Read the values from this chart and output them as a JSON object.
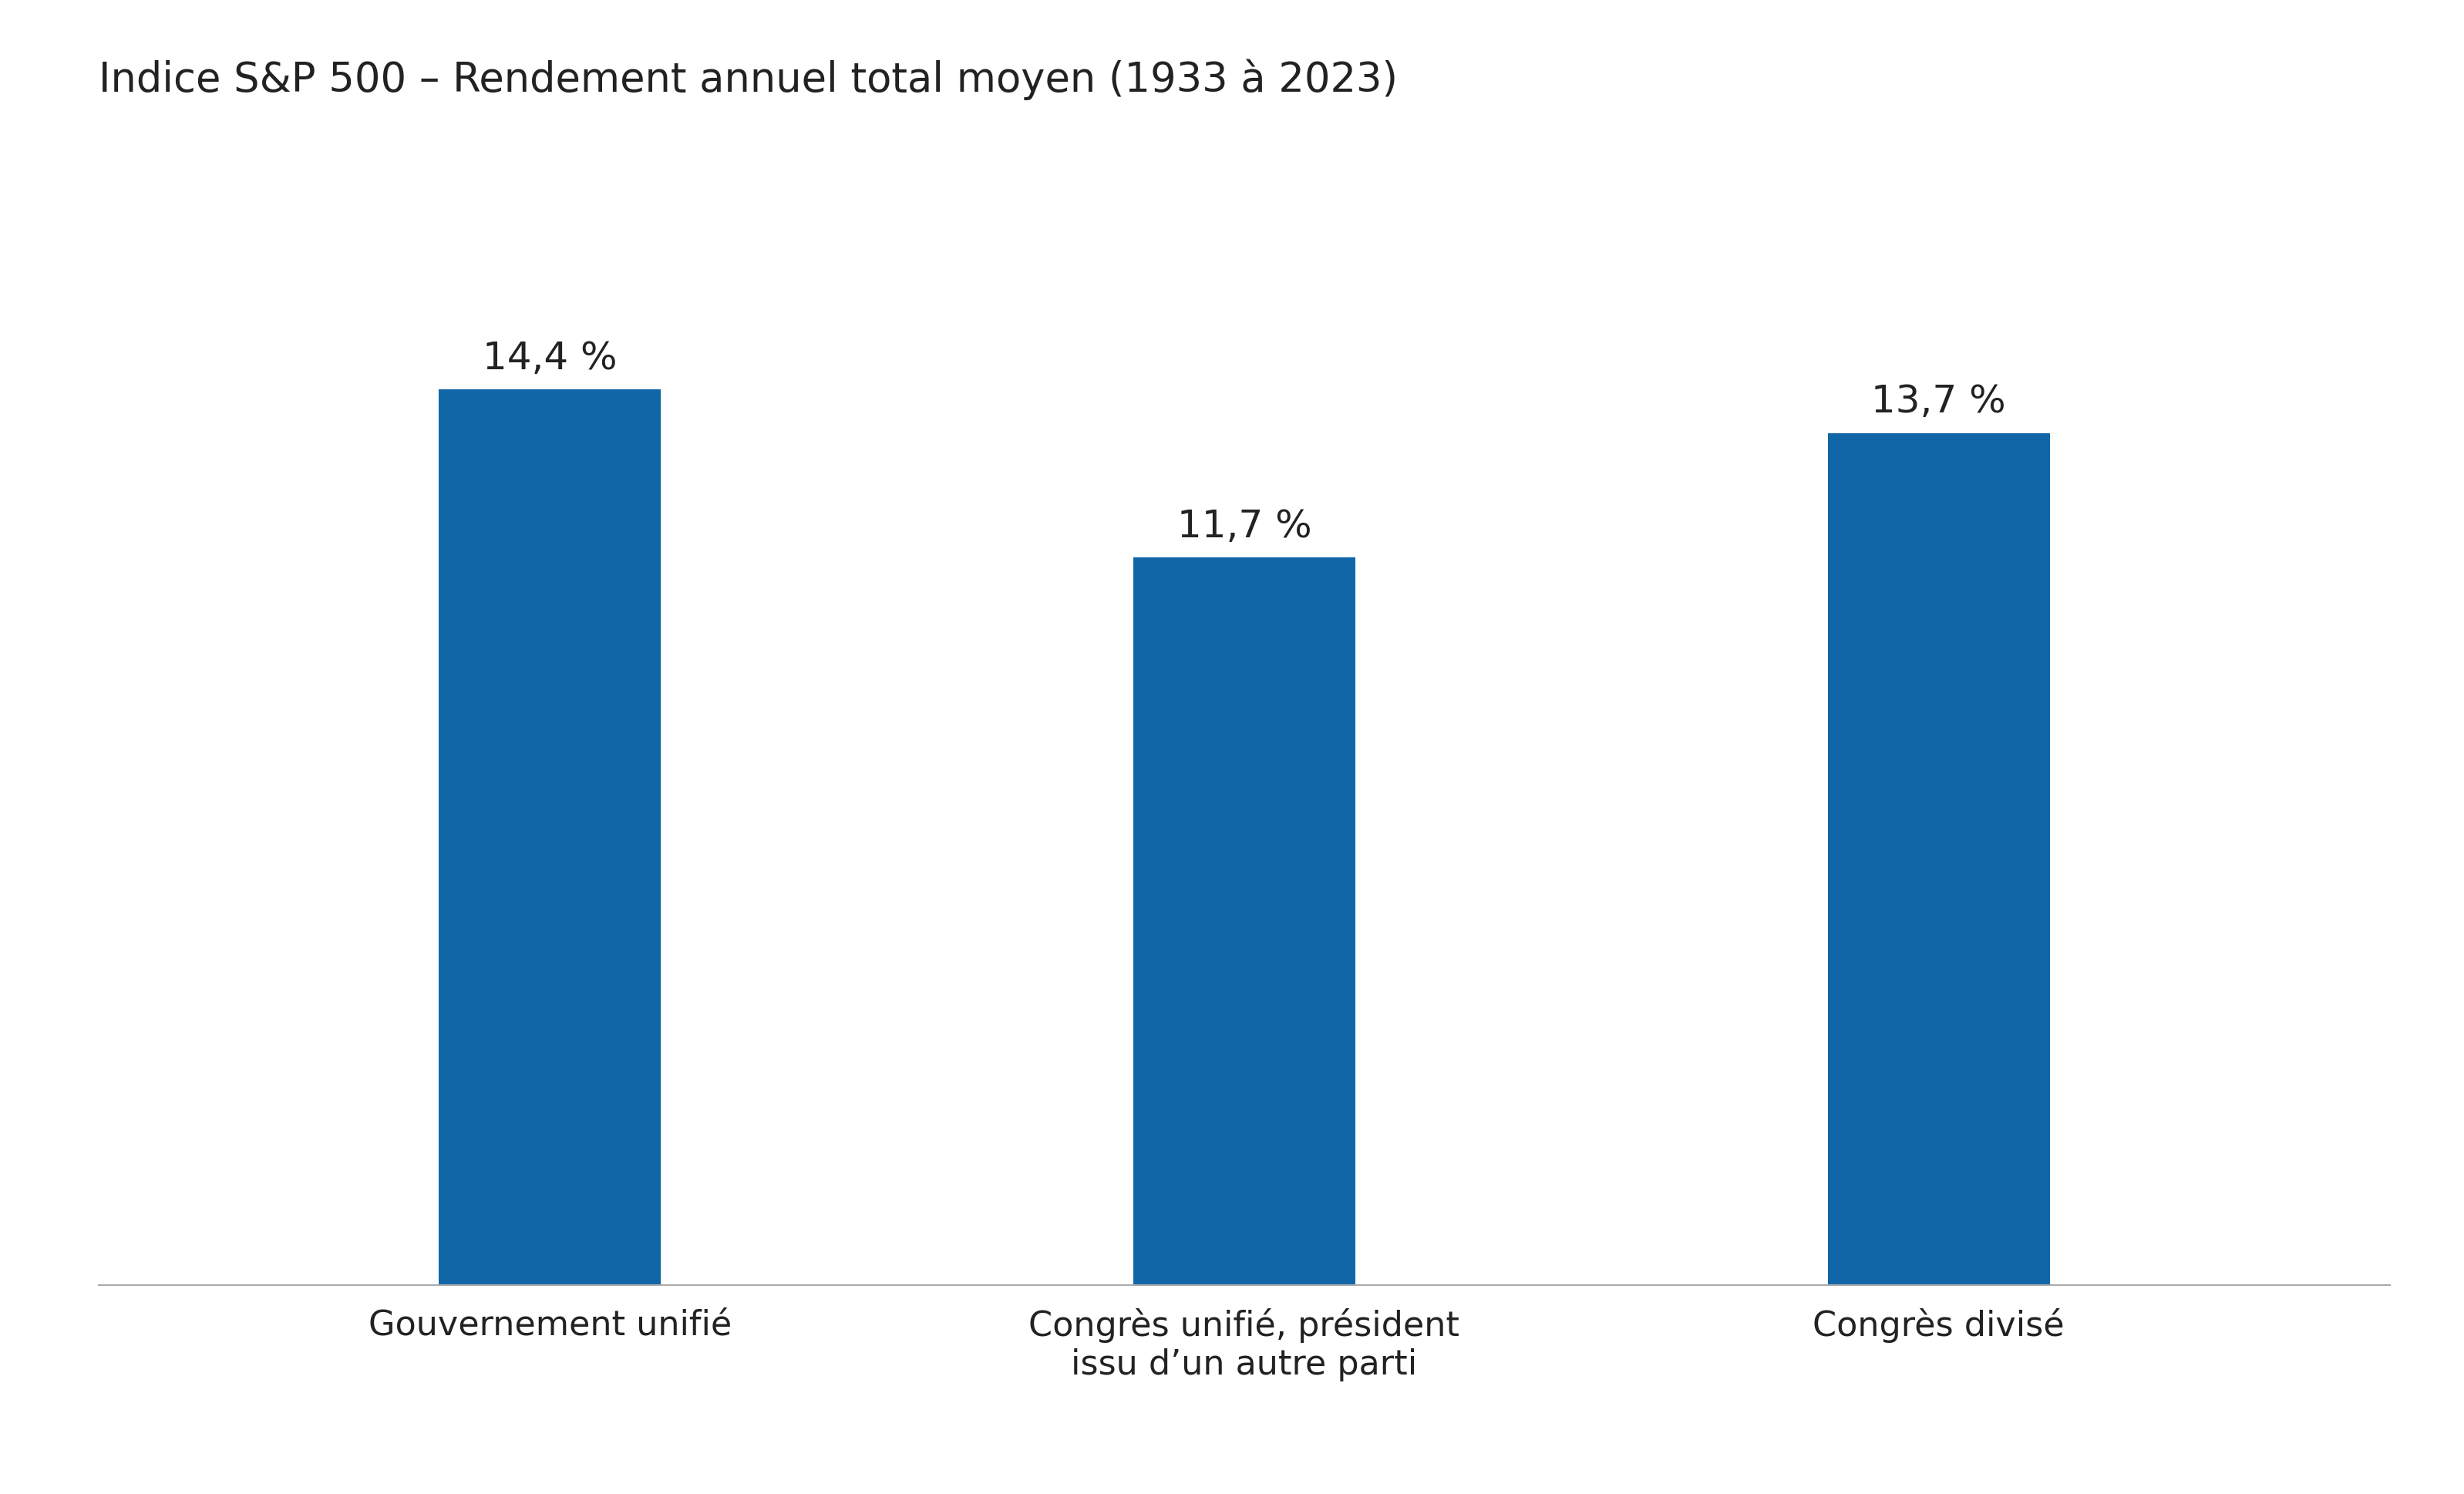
{
  "title": "Indice S&P 500 – Rendement annuel total moyen (1933 à 2023)",
  "categories": [
    "Gouvernement unifié",
    "Congrès unifié, président\nissu d’un autre parti",
    "Congrès divisé"
  ],
  "values": [
    14.4,
    11.7,
    13.7
  ],
  "labels": [
    "14,4 %",
    "11,7 %",
    "13,7 %"
  ],
  "bar_color": "#1166a8",
  "background_color": "#ffffff",
  "title_fontsize": 38,
  "label_fontsize": 36,
  "tick_fontsize": 32,
  "bar_width": 0.32,
  "ylim": [
    0,
    18.5
  ],
  "text_color": "#222222"
}
